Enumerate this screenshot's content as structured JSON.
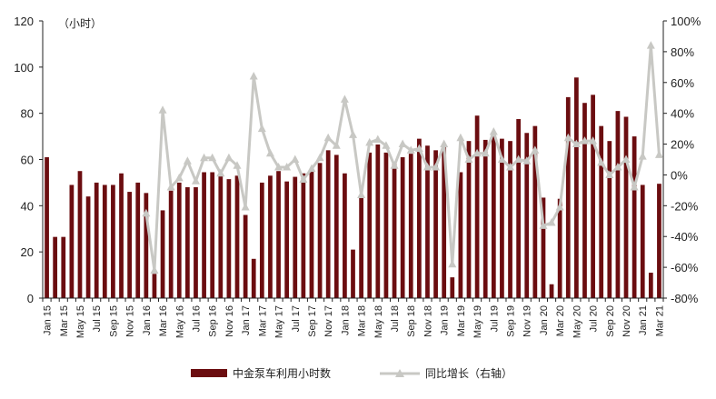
{
  "unit_label": "（小时）",
  "legend": {
    "bar_label": "中金泵车利用小时数",
    "line_label": "同比增长（右轴）"
  },
  "colors": {
    "bar": "#6b0d10",
    "line": "#c8c8c4",
    "axis": "#222222"
  },
  "chart_data": {
    "type": "bar",
    "categories": [
      "Jan 15",
      "Feb 15",
      "Mar 15",
      "Apr 15",
      "May 15",
      "Jun 15",
      "Jul 15",
      "Aug 15",
      "Sep 15",
      "Oct 15",
      "Nov 15",
      "Dec 15",
      "Jan 16",
      "Feb 16",
      "Mar 16",
      "Apr 16",
      "May 16",
      "Jun 16",
      "Jul 16",
      "Aug 16",
      "Sep 16",
      "Oct 16",
      "Nov 16",
      "Dec 16",
      "Jan 17",
      "Feb 17",
      "Mar 17",
      "Apr 17",
      "May 17",
      "Jun 17",
      "Jul 17",
      "Aug 17",
      "Sep 17",
      "Oct 17",
      "Nov 17",
      "Dec 17",
      "Jan 18",
      "Feb 18",
      "Mar 18",
      "Apr 18",
      "May 18",
      "Jun 18",
      "Jul 18",
      "Aug 18",
      "Sep 18",
      "Oct 18",
      "Nov 18",
      "Dec 18",
      "Jan 19",
      "Feb 19",
      "Mar 19",
      "Apr 19",
      "May 19",
      "Jun 19",
      "Jul 19",
      "Aug 19",
      "Sep 19",
      "Oct 19",
      "Nov 19",
      "Dec 19",
      "Jan 20",
      "Feb 20",
      "Mar 20",
      "Apr 20",
      "May 20",
      "Jun 20",
      "Jul 20",
      "Aug 20",
      "Sep 20",
      "Oct 20",
      "Nov 20",
      "Dec 20",
      "Jan 21",
      "Feb 21",
      "Mar 21"
    ],
    "x_tick_labels": [
      "Jan 15",
      "Mar 15",
      "May 15",
      "Jul 15",
      "Sep 15",
      "Nov 15",
      "Jan 16",
      "Mar 16",
      "May 16",
      "Jul 16",
      "Sep 16",
      "Nov 16",
      "Jan 17",
      "Mar 17",
      "May 17",
      "Jul 17",
      "Sep 17",
      "Nov 17",
      "Jan 18",
      "Mar 18",
      "May 18",
      "Jul 18",
      "Sep 18",
      "Nov 18",
      "Jan 19",
      "Mar 19",
      "May 19",
      "Jul 19",
      "Sep 19",
      "Nov 19",
      "Jan 20",
      "Mar 20",
      "May 20",
      "Jul 20",
      "Sep 20",
      "Nov 20",
      "Jan 21",
      "Mar 21"
    ],
    "series": [
      {
        "name": "中金泵车利用小时数",
        "type": "bar",
        "axis": "left",
        "values": [
          61,
          26.5,
          26.5,
          49,
          55,
          44,
          50,
          49,
          49,
          54,
          46,
          50,
          45.5,
          10.5,
          38,
          46.5,
          50,
          48,
          48,
          54.5,
          54.5,
          54,
          51.5,
          53,
          36,
          17,
          50,
          53,
          55,
          50.5,
          52.5,
          54,
          56,
          58.5,
          64,
          62,
          54,
          21,
          44,
          63,
          66.5,
          63,
          58.5,
          61,
          62.5,
          69,
          66,
          64,
          66,
          9,
          54.5,
          68,
          79,
          68.5,
          70,
          69,
          68,
          77.5,
          71.5,
          74.5,
          43.5,
          6,
          43,
          87,
          95.5,
          84.5,
          88,
          74.5,
          68,
          81,
          78.5,
          70,
          49,
          11,
          49.5
        ]
      },
      {
        "name": "同比增长（右轴）",
        "type": "line",
        "axis": "right",
        "values": [
          null,
          null,
          null,
          null,
          null,
          null,
          null,
          null,
          null,
          null,
          null,
          null,
          -25,
          -62,
          42,
          -8,
          -2,
          9,
          -4,
          11,
          11,
          1,
          11,
          6,
          -21,
          64,
          30,
          14,
          5,
          5,
          10,
          -3,
          4,
          11,
          24,
          19,
          49,
          26,
          -13,
          21,
          23,
          19,
          6,
          20,
          16,
          17,
          5,
          5,
          20,
          -58,
          24,
          10,
          14,
          14,
          28,
          10,
          5,
          10,
          9,
          16,
          -33,
          -31,
          -21,
          24,
          20,
          22,
          22,
          8,
          0,
          5,
          10,
          -8,
          12,
          84,
          13
        ]
      }
    ],
    "left_axis": {
      "ylim": [
        0,
        120
      ],
      "ticks": [
        0,
        20,
        40,
        60,
        80,
        100,
        120
      ]
    },
    "right_axis": {
      "ylim": [
        -80,
        100
      ],
      "ticks": [
        "-80%",
        "-60%",
        "-40%",
        "-20%",
        "0%",
        "20%",
        "40%",
        "60%",
        "80%",
        "100%"
      ]
    },
    "grid": false,
    "legend_position": "bottom"
  }
}
